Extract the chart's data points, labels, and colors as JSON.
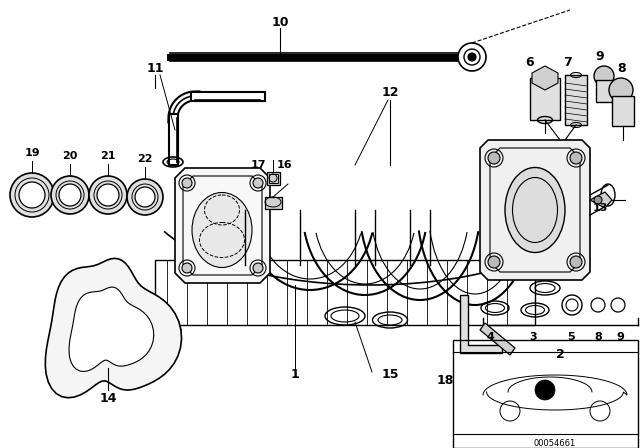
{
  "bg_color": "#ffffff",
  "line_color": "#000000",
  "fig_width": 6.4,
  "fig_height": 4.48,
  "dpi": 100,
  "diagram_code": "00054661"
}
